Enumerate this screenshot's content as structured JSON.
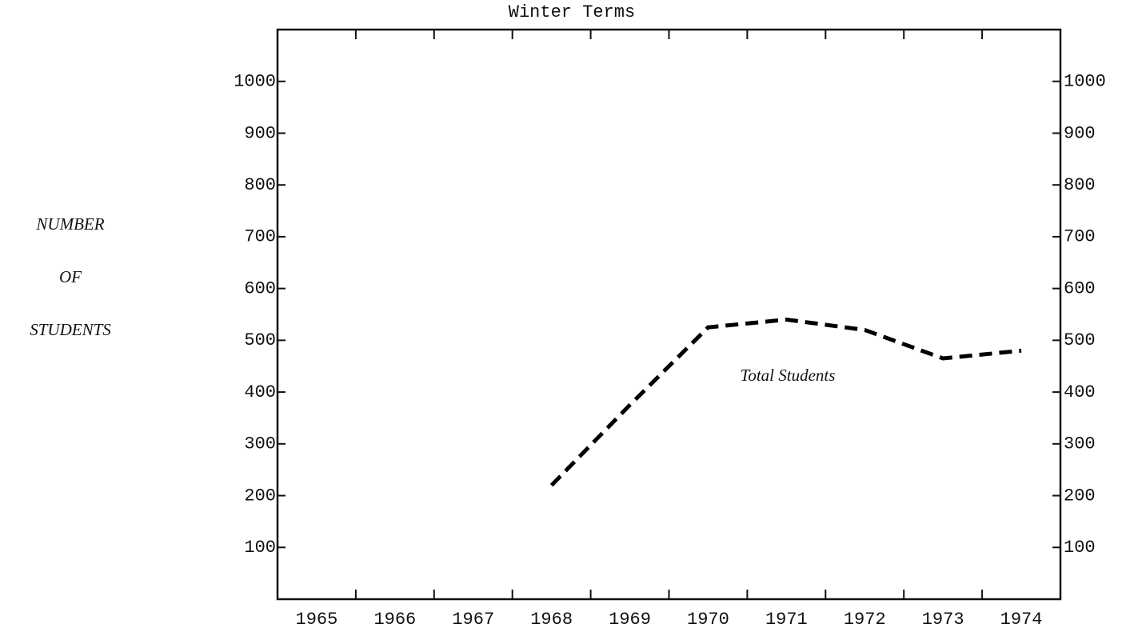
{
  "chart_data": {
    "type": "line",
    "title": "Winter Terms",
    "y_label": [
      "NUMBER",
      "OF",
      "STUDENTS"
    ],
    "annotations": [
      "Total Students"
    ],
    "categories": [
      "1965",
      "1966",
      "1967",
      "1968",
      "1969",
      "1970",
      "1971",
      "1972",
      "1973",
      "1974"
    ],
    "series": [
      {
        "name": "Total Students",
        "color": "#000000",
        "dashed": true,
        "values": [
          null,
          null,
          null,
          220,
          375,
          525,
          540,
          520,
          465,
          480
        ]
      }
    ],
    "ylim": [
      0,
      1100
    ],
    "yticks": [
      100,
      200,
      300,
      400,
      500,
      600,
      700,
      800,
      900,
      1000
    ],
    "grid": false
  }
}
